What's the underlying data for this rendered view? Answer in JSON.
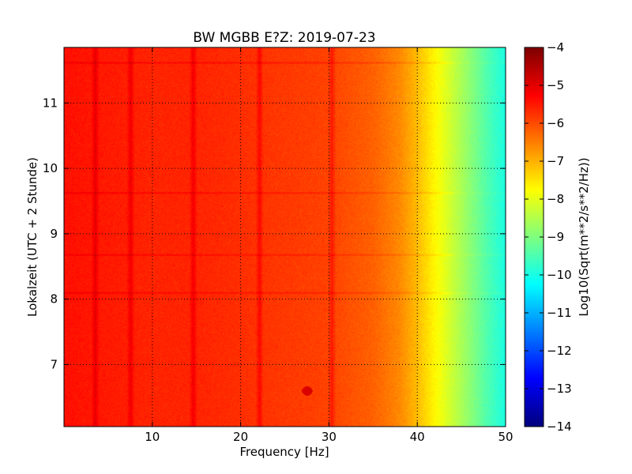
{
  "chart_data": {
    "type": "heatmap",
    "title": "BW MGBB E?Z: 2019-07-23",
    "xlabel": "Frequency [Hz]",
    "ylabel": "Lokalzeit (UTC + 2 Stunde)",
    "xlim": [
      0,
      50
    ],
    "ylim": [
      11.85,
      6.05
    ],
    "y_inverted": true,
    "grid": true,
    "x_ticks": [
      10,
      20,
      30,
      40,
      50
    ],
    "x_tick_labels": [
      "10",
      "20",
      "30",
      "40",
      "50"
    ],
    "y_ticks": [
      7,
      8,
      9,
      10,
      11
    ],
    "y_tick_labels": [
      "7",
      "8",
      "9",
      "10",
      "11"
    ],
    "colormap": "jet",
    "colorbar": {
      "label": "Log10(Sqrt(m**2/s**2/Hz))",
      "range": [
        -14,
        -4
      ],
      "ticks": [
        -4,
        -5,
        -6,
        -7,
        -8,
        -9,
        -10,
        -11,
        -12,
        -13,
        -14
      ],
      "tick_labels": [
        "−4",
        "−5",
        "−6",
        "−7",
        "−8",
        "−9",
        "−10",
        "−11",
        "−12",
        "−13",
        "−14"
      ]
    },
    "spectrum_profile": {
      "frequency_hz": [
        0,
        5,
        10,
        15,
        20,
        25,
        30,
        35,
        38,
        40,
        42,
        44,
        46,
        48,
        50
      ],
      "log10_amplitude": [
        -5.4,
        -5.5,
        -5.6,
        -5.6,
        -5.7,
        -5.8,
        -5.9,
        -6.2,
        -6.6,
        -7.1,
        -7.7,
        -8.3,
        -8.9,
        -9.5,
        -10.0
      ]
    },
    "vertical_lines_hz": [
      3.5,
      7.5,
      14.6,
      22.1,
      30.3
    ],
    "horizontal_streaks_local_time": [
      8.1,
      8.68,
      9.63,
      11.62
    ],
    "hotspot": {
      "frequency_hz": 27.5,
      "local_time": 6.6,
      "log10_amplitude": -4.9
    }
  }
}
